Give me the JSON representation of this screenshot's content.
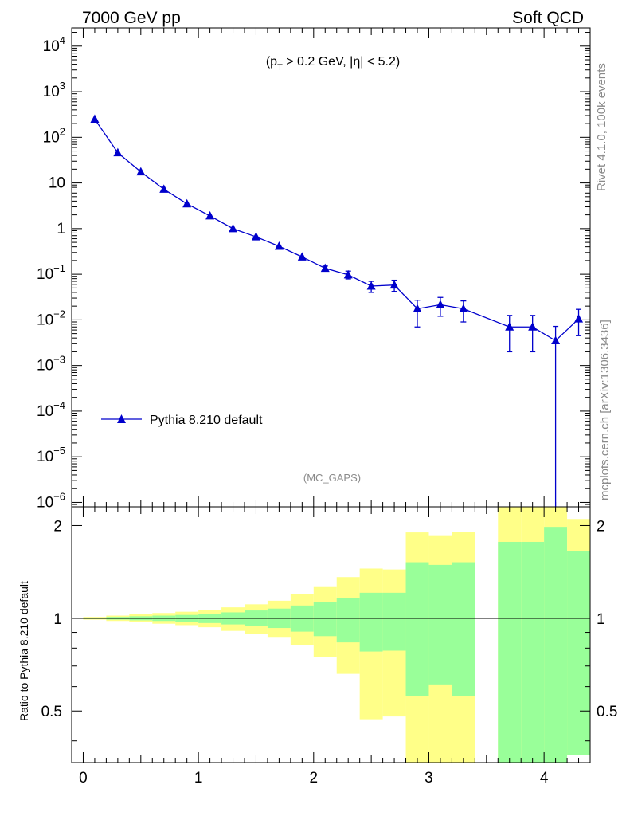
{
  "header": {
    "left_title": "7000 GeV pp",
    "right_title": "Soft QCD"
  },
  "side_labels": {
    "rivet": "Rivet 4.1.0,  100k events",
    "mcplots": "mcplots.cern.ch [arXiv:1306.3436]"
  },
  "colors": {
    "series": "#0000cc",
    "band_outer": "#ffff88",
    "band_inner": "#99ff99",
    "axis": "#000000",
    "watermark": "#8a8a8a"
  },
  "chart_data": [
    {
      "type": "line",
      "panel": "main",
      "annotation": {
        "pre": "(p",
        "sub": "T",
        "post": " > 0.2 GeV, |η| < 5.2)"
      },
      "watermark": "(MC_GAPS)",
      "yscale": "log",
      "xlim": [
        -0.1,
        4.4
      ],
      "ylim": [
        8e-07,
        25000
      ],
      "y_major_ticks": [
        {
          "value": 10000,
          "base": "10",
          "exp": "4"
        },
        {
          "value": 1000,
          "base": "10",
          "exp": "3"
        },
        {
          "value": 100,
          "base": "10",
          "exp": "2"
        },
        {
          "value": 10,
          "base": "10",
          "exp": ""
        },
        {
          "value": 1,
          "base": "1",
          "exp": ""
        },
        {
          "value": 0.1,
          "base": "10",
          "exp": "−1"
        },
        {
          "value": 0.01,
          "base": "10",
          "exp": "−2"
        },
        {
          "value": 0.001,
          "base": "10",
          "exp": "−3"
        },
        {
          "value": 0.0001,
          "base": "10",
          "exp": "−4"
        },
        {
          "value": 1e-05,
          "base": "10",
          "exp": "−5"
        },
        {
          "value": 1e-06,
          "base": "10",
          "exp": "−6"
        }
      ],
      "legend": {
        "label": "Pythia 8.210 default",
        "position": "lower-left"
      },
      "series": [
        {
          "name": "Pythia 8.210 default",
          "marker": "triangle-up",
          "x": [
            0.1,
            0.3,
            0.5,
            0.7,
            0.9,
            1.1,
            1.3,
            1.5,
            1.7,
            1.9,
            2.1,
            2.3,
            2.5,
            2.7,
            2.9,
            3.1,
            3.3,
            3.7,
            3.9,
            4.1,
            4.3
          ],
          "y": [
            250,
            46,
            17.5,
            7.3,
            3.5,
            1.9,
            1.0,
            0.66,
            0.41,
            0.24,
            0.135,
            0.097,
            0.055,
            0.058,
            0.0175,
            0.0215,
            0.0175,
            0.007,
            0.007,
            0.0035,
            0.0105
          ],
          "yerr_low": [
            0,
            0,
            0,
            0,
            0,
            0,
            0,
            0,
            0,
            0,
            0.014,
            0.018,
            0.015,
            0.016,
            0.0105,
            0.0095,
            0.0085,
            0.005,
            0.005,
            0.0035,
            0.006
          ],
          "yerr_high": [
            0,
            0,
            0,
            0,
            0,
            0,
            0,
            0,
            0,
            0,
            0.016,
            0.02,
            0.015,
            0.016,
            0.0095,
            0.0095,
            0.0085,
            0.0055,
            0.0055,
            0.0037,
            0.0065
          ]
        }
      ]
    },
    {
      "type": "area",
      "panel": "ratio",
      "ylabel": "Ratio to Pythia 8.210 default",
      "xlim": [
        -0.1,
        4.4
      ],
      "ylim": [
        0.34,
        2.3
      ],
      "x_ticks": [
        0,
        1,
        2,
        3,
        4
      ],
      "x_tick_labels": [
        "0",
        "1",
        "2",
        "3",
        "4"
      ],
      "y_ticks": [
        0.5,
        1,
        2
      ],
      "y_tick_labels": [
        "0.5",
        "1",
        "2"
      ],
      "reference_line": 1,
      "bins": [
        {
          "lo": 0.0,
          "hi": 0.2,
          "outer": [
            0.99,
            1.01
          ],
          "inner": [
            0.995,
            1.005
          ]
        },
        {
          "lo": 0.2,
          "hi": 0.4,
          "outer": [
            0.98,
            1.02
          ],
          "inner": [
            0.99,
            1.01
          ]
        },
        {
          "lo": 0.4,
          "hi": 0.6,
          "outer": [
            0.97,
            1.03
          ],
          "inner": [
            0.985,
            1.015
          ]
        },
        {
          "lo": 0.6,
          "hi": 0.8,
          "outer": [
            0.96,
            1.04
          ],
          "inner": [
            0.98,
            1.02
          ]
        },
        {
          "lo": 0.8,
          "hi": 1.0,
          "outer": [
            0.95,
            1.05
          ],
          "inner": [
            0.975,
            1.025
          ]
        },
        {
          "lo": 1.0,
          "hi": 1.2,
          "outer": [
            0.935,
            1.065
          ],
          "inner": [
            0.965,
            1.035
          ]
        },
        {
          "lo": 1.2,
          "hi": 1.4,
          "outer": [
            0.91,
            1.085
          ],
          "inner": [
            0.955,
            1.045
          ]
        },
        {
          "lo": 1.4,
          "hi": 1.6,
          "outer": [
            0.89,
            1.11
          ],
          "inner": [
            0.945,
            1.06
          ]
        },
        {
          "lo": 1.6,
          "hi": 1.8,
          "outer": [
            0.87,
            1.14
          ],
          "inner": [
            0.93,
            1.075
          ]
        },
        {
          "lo": 1.8,
          "hi": 2.0,
          "outer": [
            0.82,
            1.2
          ],
          "inner": [
            0.905,
            1.1
          ]
        },
        {
          "lo": 2.0,
          "hi": 2.2,
          "outer": [
            0.75,
            1.27
          ],
          "inner": [
            0.875,
            1.13
          ]
        },
        {
          "lo": 2.2,
          "hi": 2.4,
          "outer": [
            0.66,
            1.36
          ],
          "inner": [
            0.835,
            1.165
          ]
        },
        {
          "lo": 2.4,
          "hi": 2.6,
          "outer": [
            0.47,
            1.45
          ],
          "inner": [
            0.78,
            1.21
          ]
        },
        {
          "lo": 2.6,
          "hi": 2.8,
          "outer": [
            0.48,
            1.44
          ],
          "inner": [
            0.785,
            1.21
          ]
        },
        {
          "lo": 2.8,
          "hi": 3.0,
          "outer": [
            0.34,
            1.9
          ],
          "inner": [
            0.56,
            1.52
          ]
        },
        {
          "lo": 3.0,
          "hi": 3.2,
          "outer": [
            0.34,
            1.86
          ],
          "inner": [
            0.61,
            1.49
          ]
        },
        {
          "lo": 3.2,
          "hi": 3.4,
          "outer": [
            0.34,
            1.91
          ],
          "inner": [
            0.56,
            1.52
          ]
        },
        {
          "lo": 3.6,
          "hi": 3.8,
          "outer": [
            0.34,
            2.3
          ],
          "inner": [
            0.34,
            1.77
          ]
        },
        {
          "lo": 3.8,
          "hi": 4.0,
          "outer": [
            0.34,
            2.3
          ],
          "inner": [
            0.34,
            1.77
          ]
        },
        {
          "lo": 4.0,
          "hi": 4.2,
          "outer": [
            0.34,
            2.3
          ],
          "inner": [
            0.34,
            1.98
          ]
        },
        {
          "lo": 4.2,
          "hi": 4.4,
          "outer": [
            0.36,
            2.1
          ],
          "inner": [
            0.36,
            1.65
          ]
        }
      ]
    }
  ]
}
